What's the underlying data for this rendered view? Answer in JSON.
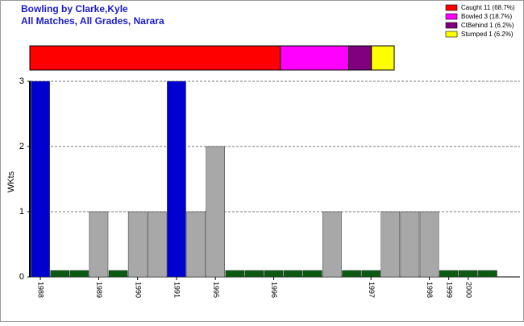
{
  "chart_data": {
    "type": "bar",
    "title": "Bowling by Clarke,Kyle",
    "subtitle": "All Matches, All Grades, Narara",
    "y_label": "WKts",
    "categories": [
      "1988",
      null,
      null,
      "1989",
      null,
      "1990",
      null,
      "1991",
      null,
      "1995",
      null,
      null,
      "1996",
      null,
      null,
      null,
      null,
      "1997",
      null,
      null,
      "1998",
      "1999",
      "2000",
      null
    ],
    "values": [
      3,
      0,
      0,
      1,
      0,
      1,
      1,
      3,
      1,
      2,
      0,
      0,
      0,
      0,
      0,
      1,
      0,
      0,
      1,
      1,
      1,
      0,
      0,
      0
    ],
    "colors": [
      "#0000d0",
      "#0b5a12",
      "#0b5a12",
      "#a8a8a8",
      "#0b5a12",
      "#a8a8a8",
      "#a8a8a8",
      "#0000d0",
      "#a8a8a8",
      "#a8a8a8",
      "#0b5a12",
      "#0b5a12",
      "#0b5a12",
      "#0b5a12",
      "#0b5a12",
      "#a8a8a8",
      "#0b5a12",
      "#0b5a12",
      "#a8a8a8",
      "#a8a8a8",
      "#a8a8a8",
      "#0b5a12",
      "#0b5a12",
      "#0b5a12"
    ],
    "ylim": [
      0,
      3
    ],
    "yticks": [
      0,
      1,
      2,
      3
    ],
    "grid": true,
    "breakdown": [
      {
        "name": "Caught 11 (68.7%)",
        "value": 11,
        "color": "#ff0000"
      },
      {
        "name": "Bowled 3 (18.7%)",
        "value": 3,
        "color": "#ff00ff"
      },
      {
        "name": "CtBehind 1 (6.2%)",
        "value": 1,
        "color": "#800080"
      },
      {
        "name": "Stumped 1 (6.2%)",
        "value": 1,
        "color": "#ffff00"
      }
    ]
  }
}
